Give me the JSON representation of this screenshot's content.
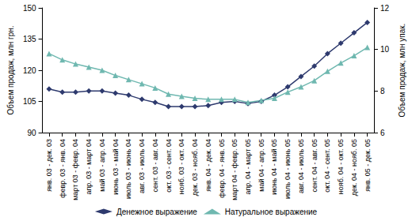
{
  "chart_data": {
    "type": "line",
    "y_label": "Объем продаж, млн грн.",
    "y2_label": "Объем продаж, млн упак.",
    "categories": [
      "янв. 03 - дек. 03",
      "февр. 03 - янв. 04",
      "март 03 - февр. 04",
      "апр. 03 - март 04",
      "май 03 - апр. 04",
      "июнь 03 - май 04",
      "июль 03 - июнь 04",
      "авг. 03 - июль 04",
      "сент. 03 - авг. 04",
      "окт. 03 - сент. 04",
      "нояб. 03 - окт. 04",
      "дек. 03 - нояб. 04",
      "янв. 04 - дек. 04",
      "февр. 04 - янв. 05",
      "март 04 - февр. 05",
      "апр. 04 - март 05",
      "май 04 - апр. 05",
      "июнь 04 - май 05",
      "июль 04 - июнь 05",
      "авг. 04 - июль 05",
      "сент. 04 - авг. 05",
      "окт. 04 - сент. 05",
      "нояб. 04 - окт. 05",
      "дек. 04 - нояб. 05",
      "янв. 05 - дек. 05"
    ],
    "series": [
      {
        "name": "Денежное выражение",
        "color": "#2e3a6e",
        "marker": "diamond",
        "values": [
          111,
          109.5,
          109.5,
          110,
          110,
          109,
          108,
          106,
          104.5,
          102.5,
          102.5,
          102.5,
          103,
          104.5,
          105,
          104,
          105,
          108,
          112,
          117,
          122,
          128,
          133,
          138,
          143
        ]
      },
      {
        "name": "Натуральное выражение",
        "color": "#6fb8b0",
        "marker": "triangle",
        "axis": "y2",
        "values": [
          9.8,
          9.5,
          9.3,
          9.15,
          9.0,
          8.75,
          8.55,
          8.35,
          8.15,
          7.85,
          7.75,
          7.65,
          7.6,
          7.6,
          7.6,
          7.45,
          7.55,
          7.65,
          7.95,
          8.2,
          8.5,
          8.95,
          9.35,
          9.7,
          10.1
        ]
      }
    ],
    "ylim": [
      90,
      150
    ],
    "yticks": [
      90,
      105,
      120,
      135,
      150
    ],
    "y2lim": [
      6,
      12
    ],
    "y2ticks": [
      6,
      8,
      10,
      12
    ],
    "grid": false,
    "legend": "bottom"
  }
}
